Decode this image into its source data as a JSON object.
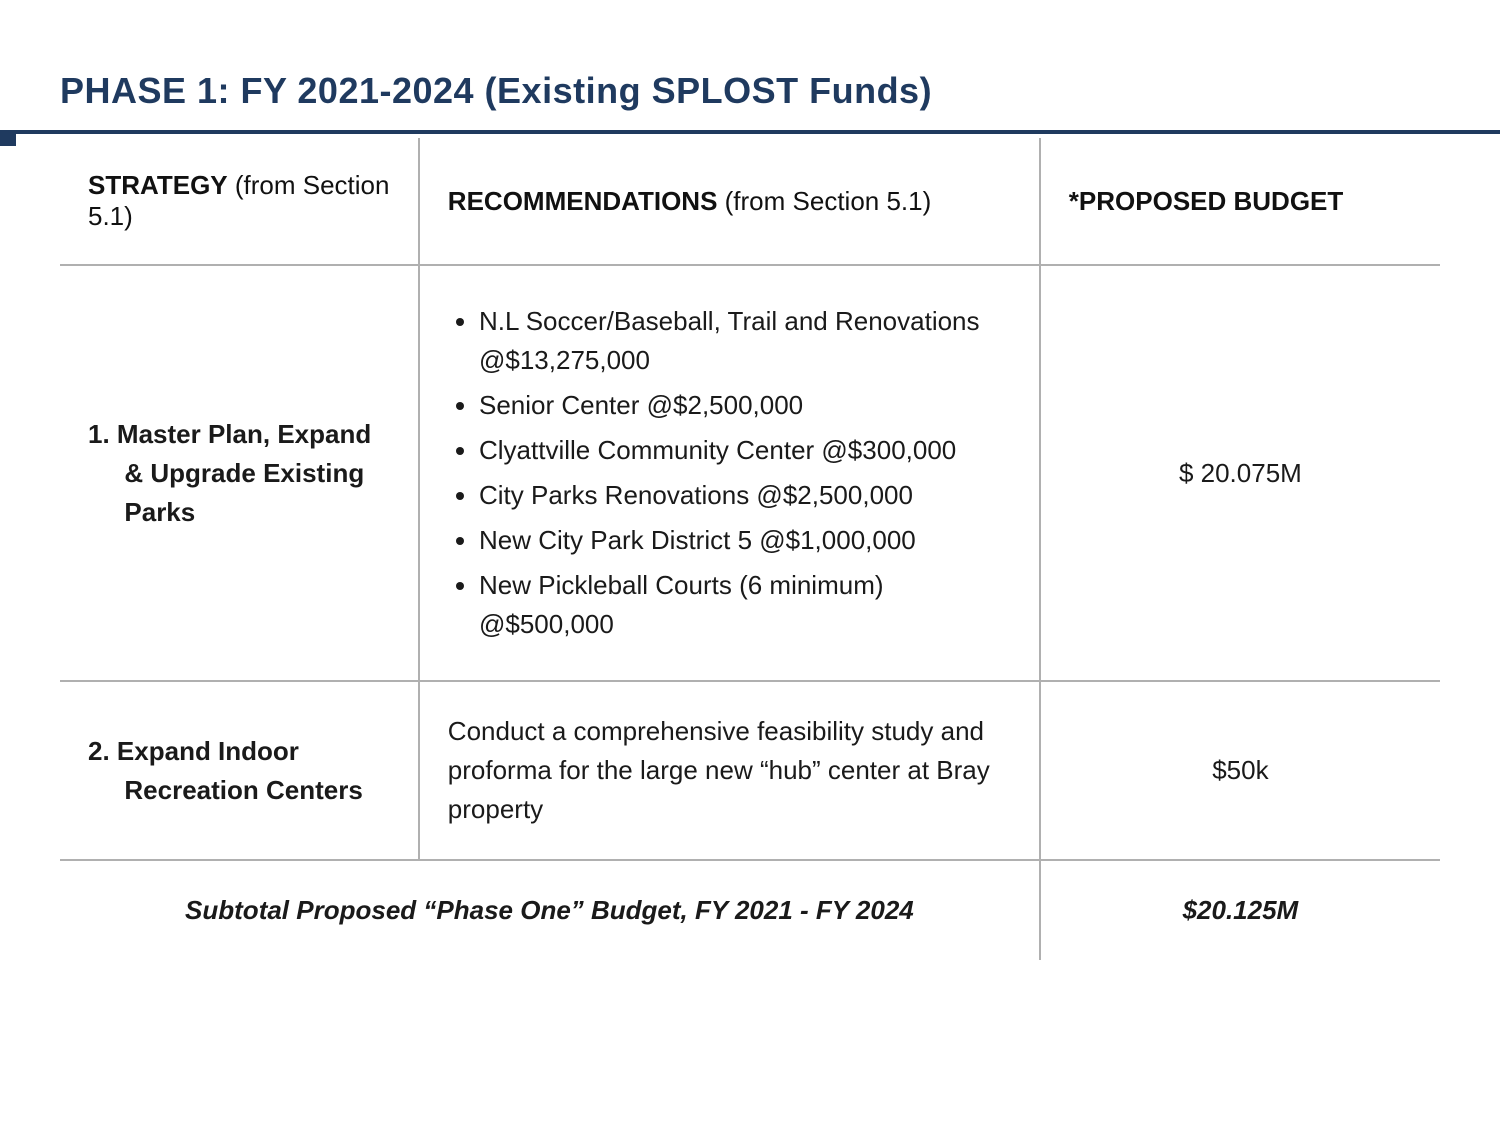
{
  "title": "PHASE 1: FY 2021-2024 (Existing SPLOST Funds)",
  "colors": {
    "accent": "#1f3a5f",
    "rule": "#b0b0b0",
    "text": "#1a1a1a",
    "bg": "#ffffff"
  },
  "headers": {
    "strategy_bold": "STRATEGY",
    "strategy_note": " (from Section 5.1)",
    "recommendations_bold": "RECOMMENDATIONS",
    "recommendations_note": " (from Section 5.1)",
    "budget": "*PROPOSED BUDGET"
  },
  "rows": [
    {
      "strategy_num": "1.",
      "strategy_text": "Master Plan, Expand & Upgrade Existing Parks",
      "recommendations": [
        "N.L Soccer/Baseball, Trail and Renovations @$13,275,000",
        "Senior Center @$2,500,000",
        "Clyattville Community Center @$300,000",
        "City Parks Renovations @$2,500,000",
        "New City Park District 5 @$1,000,000",
        "New Pickleball Courts (6 minimum) @$500,000"
      ],
      "budget": "$ 20.075M"
    },
    {
      "strategy_num": "2.",
      "strategy_text": "Expand Indoor Recreation Centers",
      "recommendations_text": "Conduct a comprehensive feasibility study and proforma for the large new “hub” center at Bray property",
      "budget": "$50k"
    }
  ],
  "subtotal": {
    "label": "Subtotal Proposed “Phase One” Budget, FY 2021 - FY 2024",
    "value": "$20.125M"
  }
}
